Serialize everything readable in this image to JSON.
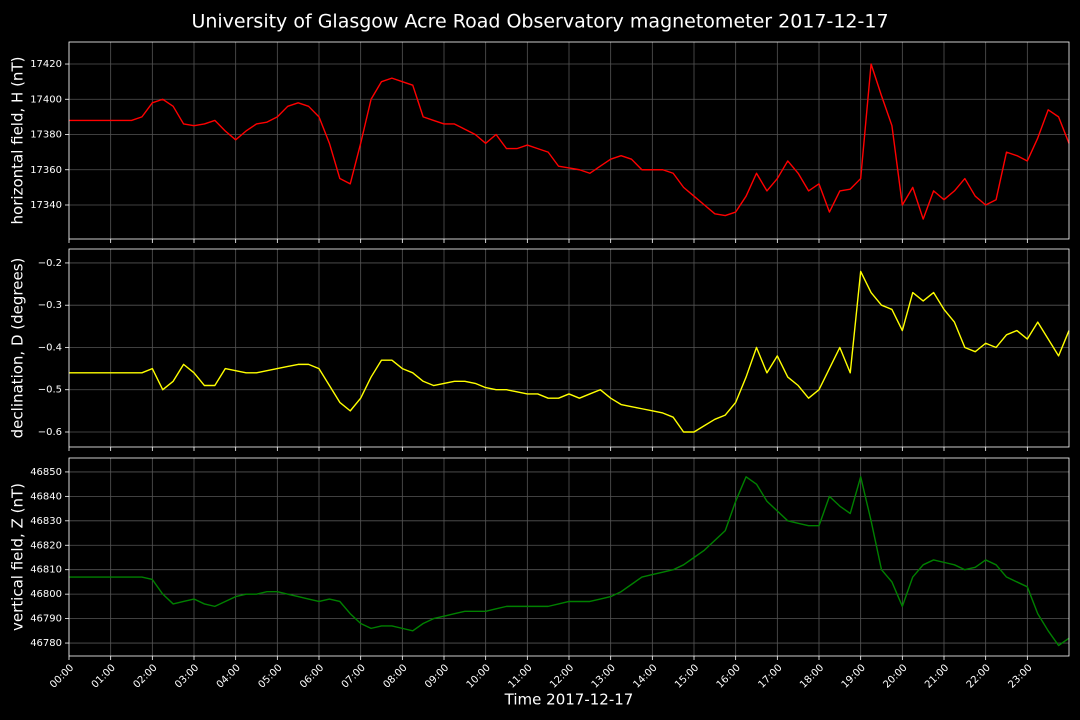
{
  "title": "University of Glasgow Acre Road Observatory magnetometer 2017-12-17",
  "chart_data": [
    {
      "type": "line",
      "ylabel": "horizontal field, H (nT)",
      "color": "#ff0000",
      "grid": true,
      "xlim": [
        0,
        24
      ],
      "ylim": [
        17320.7,
        17432.5
      ],
      "yticks": [
        17340,
        17360,
        17380,
        17400,
        17420
      ],
      "x": [
        0,
        0.25,
        0.5,
        0.75,
        1,
        1.25,
        1.5,
        1.75,
        2,
        2.25,
        2.5,
        2.75,
        3,
        3.25,
        3.5,
        3.75,
        4,
        4.25,
        4.5,
        4.75,
        5,
        5.25,
        5.5,
        5.75,
        6,
        6.25,
        6.5,
        6.75,
        7,
        7.25,
        7.5,
        7.75,
        8,
        8.25,
        8.5,
        8.75,
        9,
        9.25,
        9.5,
        9.75,
        10,
        10.25,
        10.5,
        10.75,
        11,
        11.25,
        11.5,
        11.75,
        12,
        12.25,
        12.5,
        12.75,
        13,
        13.25,
        13.5,
        13.75,
        14,
        14.25,
        14.5,
        14.75,
        15,
        15.25,
        15.5,
        15.75,
        16,
        16.25,
        16.5,
        16.75,
        17,
        17.25,
        17.5,
        17.75,
        18,
        18.25,
        18.5,
        18.75,
        19,
        19.25,
        19.5,
        19.75,
        20,
        20.25,
        20.5,
        20.75,
        21,
        21.25,
        21.5,
        21.75,
        22,
        22.25,
        22.5,
        22.75,
        23,
        23.25,
        23.5,
        23.75,
        24
      ],
      "values": [
        17388,
        17388,
        17388,
        17388,
        17388,
        17388,
        17388,
        17390,
        17398,
        17400,
        17396,
        17386,
        17385,
        17386,
        17388,
        17382,
        17377,
        17382,
        17386,
        17387,
        17390,
        17396,
        17398,
        17396,
        17390,
        17375,
        17355,
        17352,
        17375,
        17400,
        17410,
        17412,
        17410,
        17408,
        17390,
        17388,
        17386,
        17386,
        17383,
        17380,
        17375,
        17380,
        17372,
        17372,
        17374,
        17372,
        17370,
        17362,
        17361,
        17360,
        17358,
        17362,
        17366,
        17368,
        17366,
        17360,
        17360,
        17360,
        17358,
        17350,
        17345,
        17340,
        17335,
        17334,
        17336,
        17345,
        17358,
        17348,
        17355,
        17365,
        17358,
        17348,
        17352,
        17336,
        17348,
        17349,
        17355,
        17420,
        17402,
        17385,
        17340,
        17350,
        17332,
        17348,
        17343,
        17348,
        17355,
        17345,
        17340,
        17343,
        17370,
        17368,
        17365,
        17378,
        17394,
        17390,
        17375
      ]
    },
    {
      "type": "line",
      "ylabel": "declination, D (degrees)",
      "color": "#ffff00",
      "grid": true,
      "xlim": [
        0,
        24
      ],
      "ylim": [
        -0.6355,
        -0.167
      ],
      "yticks": [
        {
          "value": -0.6,
          "label": "−0.6"
        },
        {
          "value": -0.5,
          "label": "−0.5"
        },
        {
          "value": -0.4,
          "label": "−0.4"
        },
        {
          "value": -0.3,
          "label": "−0.3"
        },
        {
          "value": -0.2,
          "label": "−0.2"
        }
      ],
      "x": [
        0,
        0.25,
        0.5,
        0.75,
        1,
        1.25,
        1.5,
        1.75,
        2,
        2.25,
        2.5,
        2.75,
        3,
        3.25,
        3.5,
        3.75,
        4,
        4.25,
        4.5,
        4.75,
        5,
        5.25,
        5.5,
        5.75,
        6,
        6.25,
        6.5,
        6.75,
        7,
        7.25,
        7.5,
        7.75,
        8,
        8.25,
        8.5,
        8.75,
        9,
        9.25,
        9.5,
        9.75,
        10,
        10.25,
        10.5,
        10.75,
        11,
        11.25,
        11.5,
        11.75,
        12,
        12.25,
        12.5,
        12.75,
        13,
        13.25,
        13.5,
        13.75,
        14,
        14.25,
        14.5,
        14.75,
        15,
        15.25,
        15.5,
        15.75,
        16,
        16.25,
        16.5,
        16.75,
        17,
        17.25,
        17.5,
        17.75,
        18,
        18.25,
        18.5,
        18.75,
        19,
        19.25,
        19.5,
        19.75,
        20,
        20.25,
        20.5,
        20.75,
        21,
        21.25,
        21.5,
        21.75,
        22,
        22.25,
        22.5,
        22.75,
        23,
        23.25,
        23.5,
        23.75,
        24
      ],
      "values": [
        -0.46,
        -0.46,
        -0.46,
        -0.46,
        -0.46,
        -0.46,
        -0.46,
        -0.46,
        -0.45,
        -0.5,
        -0.48,
        -0.44,
        -0.46,
        -0.49,
        -0.49,
        -0.45,
        -0.455,
        -0.46,
        -0.46,
        -0.455,
        -0.45,
        -0.445,
        -0.44,
        -0.44,
        -0.45,
        -0.49,
        -0.53,
        -0.55,
        -0.52,
        -0.47,
        -0.43,
        -0.43,
        -0.45,
        -0.46,
        -0.48,
        -0.49,
        -0.485,
        -0.48,
        -0.48,
        -0.485,
        -0.495,
        -0.5,
        -0.5,
        -0.505,
        -0.51,
        -0.51,
        -0.52,
        -0.52,
        -0.51,
        -0.52,
        -0.51,
        -0.5,
        -0.52,
        -0.535,
        -0.54,
        -0.545,
        -0.55,
        -0.555,
        -0.565,
        -0.6,
        -0.6,
        -0.585,
        -0.57,
        -0.56,
        -0.53,
        -0.47,
        -0.4,
        -0.46,
        -0.42,
        -0.47,
        -0.49,
        -0.52,
        -0.5,
        -0.45,
        -0.4,
        -0.46,
        -0.22,
        -0.27,
        -0.3,
        -0.31,
        -0.36,
        -0.27,
        -0.29,
        -0.27,
        -0.31,
        -0.34,
        -0.4,
        -0.41,
        -0.39,
        -0.4,
        -0.37,
        -0.36,
        -0.38,
        -0.34,
        -0.38,
        -0.42,
        -0.36
      ]
    },
    {
      "type": "line",
      "ylabel": "vertical field, Z (nT)",
      "xlabel": "Time 2017-12-17",
      "color": "#008000",
      "grid": true,
      "xlim": [
        0,
        24
      ],
      "ylim": [
        46774.7,
        46855.7
      ],
      "yticks": [
        46780,
        46790,
        46800,
        46810,
        46820,
        46830,
        46840,
        46850
      ],
      "xticks": [
        {
          "value": 0,
          "label": "00:00"
        },
        {
          "value": 1,
          "label": "01:00"
        },
        {
          "value": 2,
          "label": "02:00"
        },
        {
          "value": 3,
          "label": "03:00"
        },
        {
          "value": 4,
          "label": "04:00"
        },
        {
          "value": 5,
          "label": "05:00"
        },
        {
          "value": 6,
          "label": "06:00"
        },
        {
          "value": 7,
          "label": "07:00"
        },
        {
          "value": 8,
          "label": "08:00"
        },
        {
          "value": 9,
          "label": "09:00"
        },
        {
          "value": 10,
          "label": "10:00"
        },
        {
          "value": 11,
          "label": "11:00"
        },
        {
          "value": 12,
          "label": "12:00"
        },
        {
          "value": 13,
          "label": "13:00"
        },
        {
          "value": 14,
          "label": "14:00"
        },
        {
          "value": 15,
          "label": "15:00"
        },
        {
          "value": 16,
          "label": "16:00"
        },
        {
          "value": 17,
          "label": "17:00"
        },
        {
          "value": 18,
          "label": "18:00"
        },
        {
          "value": 19,
          "label": "19:00"
        },
        {
          "value": 20,
          "label": "20:00"
        },
        {
          "value": 21,
          "label": "21:00"
        },
        {
          "value": 22,
          "label": "22:00"
        },
        {
          "value": 23,
          "label": "23:00"
        }
      ],
      "x": [
        0,
        0.25,
        0.5,
        0.75,
        1,
        1.25,
        1.5,
        1.75,
        2,
        2.25,
        2.5,
        2.75,
        3,
        3.25,
        3.5,
        3.75,
        4,
        4.25,
        4.5,
        4.75,
        5,
        5.25,
        5.5,
        5.75,
        6,
        6.25,
        6.5,
        6.75,
        7,
        7.25,
        7.5,
        7.75,
        8,
        8.25,
        8.5,
        8.75,
        9,
        9.25,
        9.5,
        9.75,
        10,
        10.25,
        10.5,
        10.75,
        11,
        11.25,
        11.5,
        11.75,
        12,
        12.25,
        12.5,
        12.75,
        13,
        13.25,
        13.5,
        13.75,
        14,
        14.25,
        14.5,
        14.75,
        15,
        15.25,
        15.5,
        15.75,
        16,
        16.25,
        16.5,
        16.75,
        17,
        17.25,
        17.5,
        17.75,
        18,
        18.25,
        18.5,
        18.75,
        19,
        19.25,
        19.5,
        19.75,
        20,
        20.25,
        20.5,
        20.75,
        21,
        21.25,
        21.5,
        21.75,
        22,
        22.25,
        22.5,
        22.75,
        23,
        23.25,
        23.5,
        23.75,
        24
      ],
      "values": [
        46807,
        46807,
        46807,
        46807,
        46807,
        46807,
        46807,
        46807,
        46806,
        46800,
        46796,
        46797,
        46798,
        46796,
        46795,
        46797,
        46799,
        46800,
        46800,
        46801,
        46801,
        46800,
        46799,
        46798,
        46797,
        46798,
        46797,
        46792,
        46788,
        46786,
        46787,
        46787,
        46786,
        46785,
        46788,
        46790,
        46791,
        46792,
        46793,
        46793,
        46793,
        46794,
        46795,
        46795,
        46795,
        46795,
        46795,
        46796,
        46797,
        46797,
        46797,
        46798,
        46799,
        46801,
        46804,
        46807,
        46808,
        46809,
        46810,
        46812,
        46815,
        46818,
        46822,
        46826,
        46838,
        46848,
        46845,
        46838,
        46834,
        46830,
        46829,
        46828,
        46828,
        46840,
        46836,
        46833,
        46848,
        46830,
        46810,
        46805,
        46795,
        46807,
        46812,
        46814,
        46813,
        46812,
        46810,
        46811,
        46814,
        46812,
        46807,
        46805,
        46803,
        46792,
        46785,
        46779,
        46782
      ]
    }
  ]
}
